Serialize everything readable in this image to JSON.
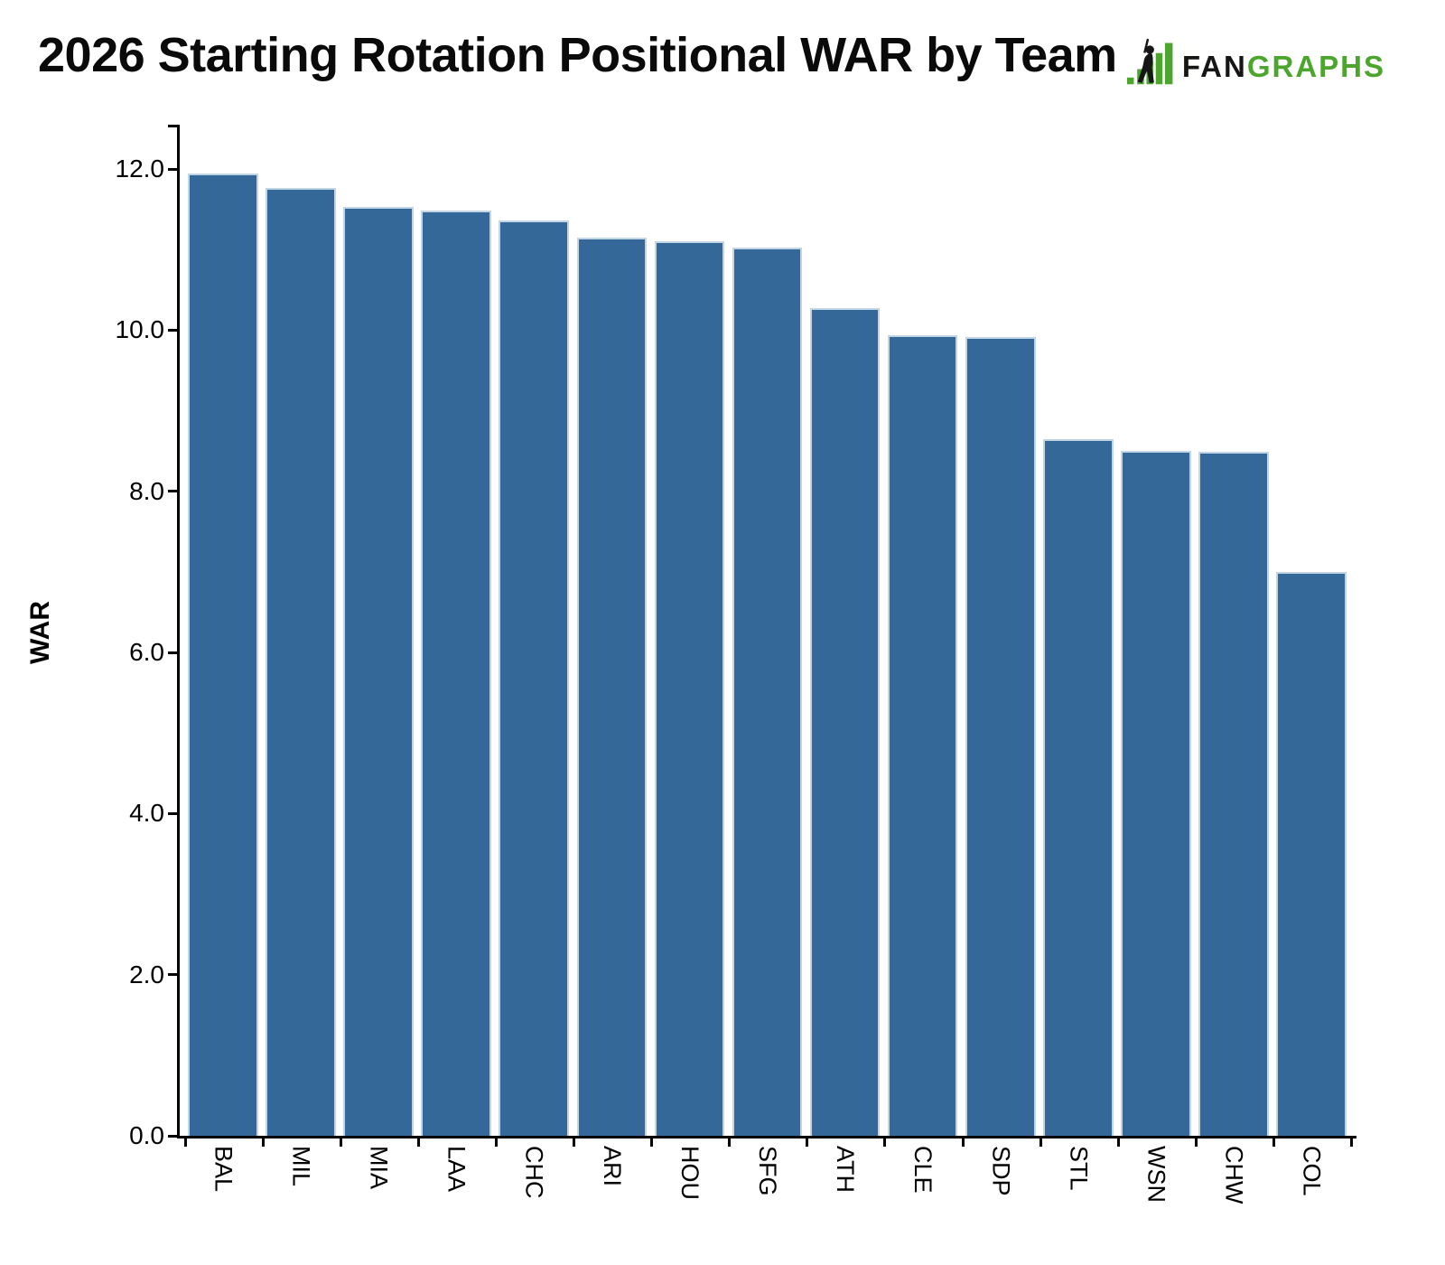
{
  "header": {
    "title": "2026 Starting Rotation Positional WAR by Team",
    "logo": {
      "part1": "FAN",
      "part2": "GRAPHS",
      "icon": "fangraphs-batter-and-bars-icon",
      "fan_color": "#161616",
      "graphs_color": "#4CA62E"
    }
  },
  "chart_data": {
    "type": "bar",
    "title": "2026 Starting Rotation Positional WAR by Team",
    "xlabel": "",
    "ylabel": "WAR",
    "categories": [
      "BAL",
      "MIL",
      "MIA",
      "LAA",
      "CHC",
      "ARI",
      "HOU",
      "SFG",
      "ATH",
      "CLE",
      "SDP",
      "STL",
      "WSN",
      "CHW",
      "COL"
    ],
    "values": [
      11.94,
      11.76,
      11.53,
      11.49,
      11.36,
      11.15,
      11.1,
      11.03,
      10.27,
      9.94,
      9.92,
      8.65,
      8.5,
      8.49,
      7.0
    ],
    "ylim": [
      0,
      12.55
    ],
    "yticks": [
      0,
      2,
      4,
      6,
      8,
      10,
      12
    ],
    "ytick_labels": [
      "0.0",
      "2.0",
      "4.0",
      "6.0",
      "8.0",
      "10.0",
      "12.0"
    ],
    "grid": false,
    "legend": null,
    "bar_color": "#336899",
    "bar_edge_color": "#c2d5e5",
    "axis_color": "#000000",
    "x_tick_style": "category-boundary-ticks",
    "x_label_rotation_deg": 90
  }
}
